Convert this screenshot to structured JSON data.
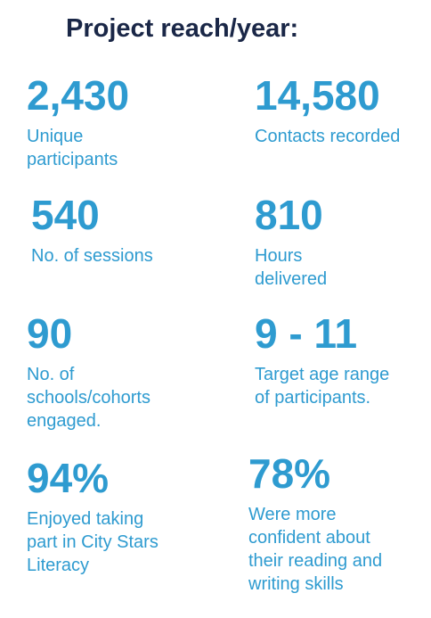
{
  "title": "Project reach/year:",
  "colors": {
    "title": "#1a2747",
    "accent": "#2e9bd0"
  },
  "stats": [
    {
      "value": "2,430",
      "label": "Unique\nparticipants"
    },
    {
      "value": "14,580",
      "label": "Contacts recorded"
    },
    {
      "value": "540",
      "label": "No. of sessions"
    },
    {
      "value": "810",
      "label": "Hours\ndelivered"
    },
    {
      "value": "90",
      "label": "No. of\nschools/cohorts\nengaged."
    },
    {
      "value": "9 - 11",
      "label": "Target age range\nof participants."
    },
    {
      "value": "94%",
      "label": "Enjoyed taking\npart in City Stars\nLiteracy"
    },
    {
      "value": "78%",
      "label": "Were more\nconfident about\ntheir reading and\nwriting skills"
    }
  ]
}
